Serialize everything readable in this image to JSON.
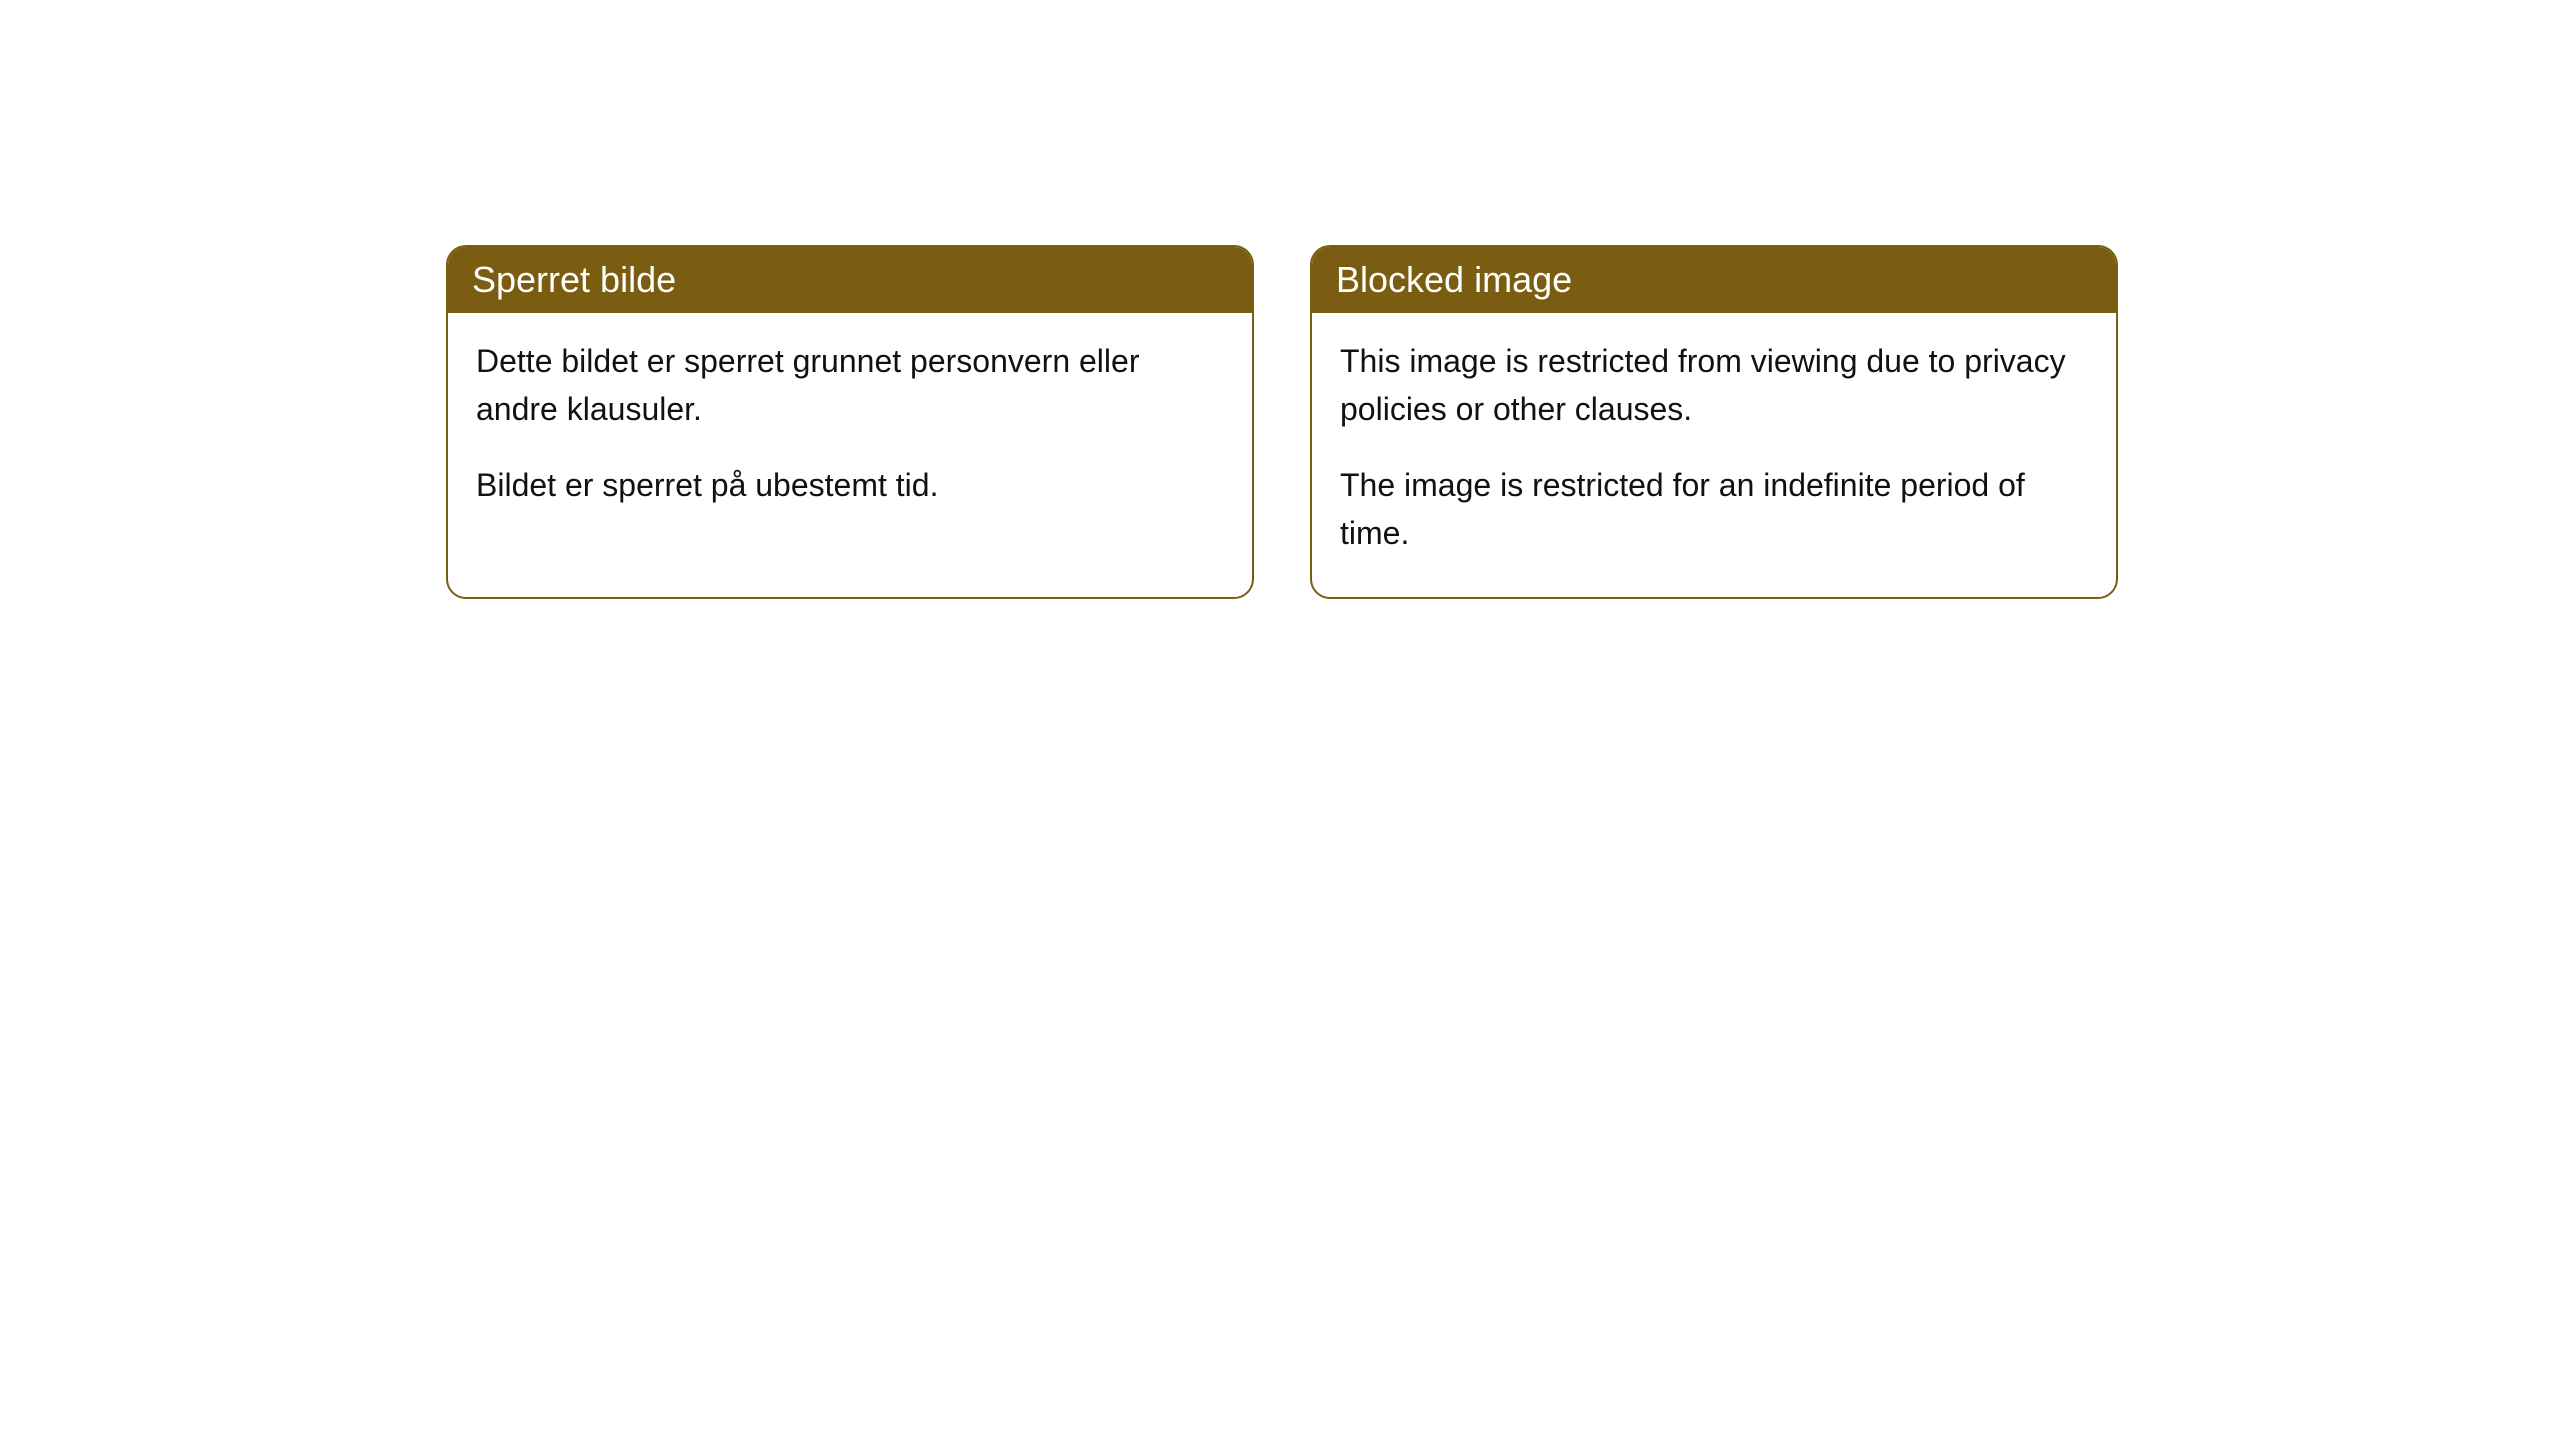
{
  "cards": [
    {
      "title": "Sperret bilde",
      "paragraph1": "Dette bildet er sperret grunnet personvern eller andre klausuler.",
      "paragraph2": "Bildet er sperret på ubestemt tid."
    },
    {
      "title": "Blocked image",
      "paragraph1": "This image is restricted from viewing due to privacy policies or other clauses.",
      "paragraph2": "The image is restricted for an indefinite period of time."
    }
  ],
  "styling": {
    "header_background": "#7a5d11",
    "header_text_color": "#ffffff",
    "border_color": "#7a5d11",
    "body_text_color": "#111111",
    "body_background": "#ffffff",
    "border_radius": 20,
    "header_fontsize": 36,
    "body_fontsize": 32
  }
}
